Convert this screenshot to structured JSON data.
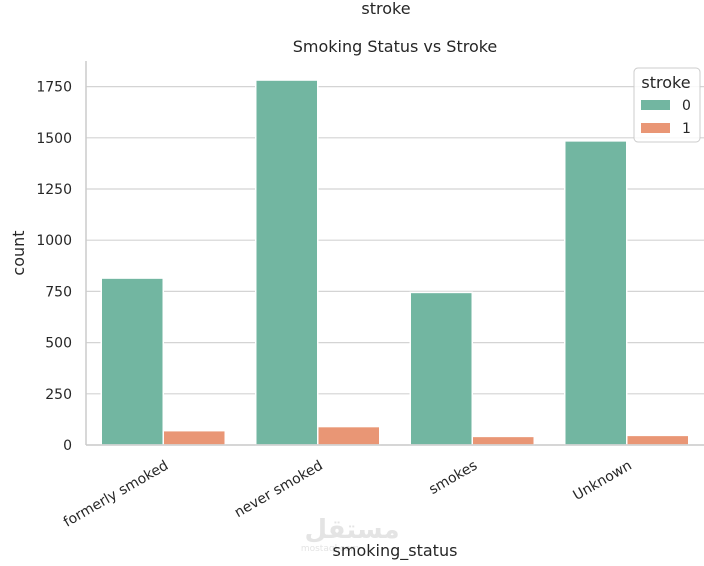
{
  "figure_title": "stroke",
  "chart_data": {
    "type": "bar",
    "title": "Smoking Status vs Stroke",
    "xlabel": "smoking_status",
    "ylabel": "count",
    "categories": [
      "formerly smoked",
      "never smoked",
      "smokes",
      "Unknown"
    ],
    "series": [
      {
        "name": "0",
        "values": [
          815,
          1782,
          745,
          1485
        ],
        "color": "#72b6a1"
      },
      {
        "name": "1",
        "values": [
          70,
          90,
          42,
          47
        ],
        "color": "#e99675"
      }
    ],
    "ylim": [
      0,
      1875
    ],
    "yticks": [
      0,
      250,
      500,
      750,
      1000,
      1250,
      1500,
      1750
    ],
    "grid": true,
    "legend": {
      "title": "stroke",
      "placement": "top-right"
    }
  },
  "watermark": {
    "text": "مستقل",
    "subtext": "mostaql.com"
  }
}
